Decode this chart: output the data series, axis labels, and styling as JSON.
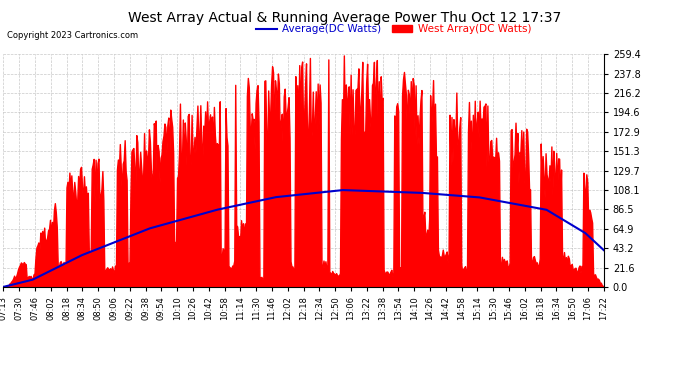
{
  "title": "West Array Actual & Running Average Power Thu Oct 12 17:37",
  "copyright": "Copyright 2023 Cartronics.com",
  "legend_avg": "Average(DC Watts)",
  "legend_west": "West Array(DC Watts)",
  "ymin": 0.0,
  "ymax": 259.4,
  "yticks": [
    0.0,
    21.6,
    43.2,
    64.9,
    86.5,
    108.1,
    129.7,
    151.3,
    172.9,
    194.6,
    216.2,
    237.8,
    259.4
  ],
  "bg_color": "#ffffff",
  "plot_bg_color": "#ffffff",
  "grid_color": "#bbbbbb",
  "area_color": "#ff0000",
  "avg_line_color": "#0000cc",
  "title_color": "#000000",
  "copyright_color": "#000000",
  "avg_legend_color": "#0000cc",
  "west_legend_color": "#ff0000",
  "time_labels": [
    "07:13",
    "07:30",
    "07:46",
    "08:02",
    "08:18",
    "08:34",
    "08:50",
    "09:06",
    "09:22",
    "09:38",
    "09:54",
    "10:10",
    "10:26",
    "10:42",
    "10:58",
    "11:14",
    "11:30",
    "11:46",
    "12:02",
    "12:18",
    "12:34",
    "12:50",
    "13:06",
    "13:22",
    "13:38",
    "13:54",
    "14:10",
    "14:26",
    "14:42",
    "14:58",
    "15:14",
    "15:30",
    "15:46",
    "16:02",
    "16:18",
    "16:34",
    "16:50",
    "17:06",
    "17:22"
  ]
}
